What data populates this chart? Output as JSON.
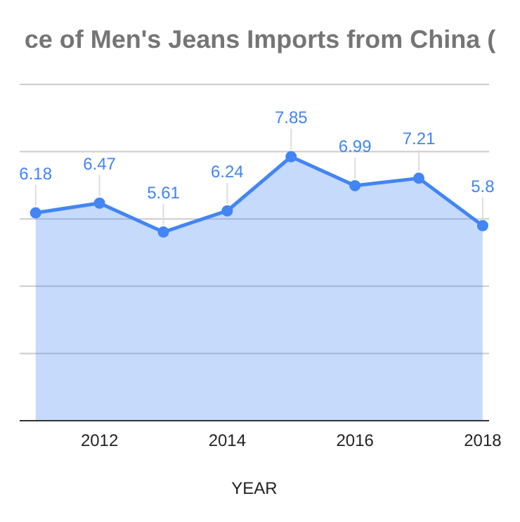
{
  "chart_data": {
    "type": "area",
    "title": "ce of Men's Jeans Imports from China (",
    "xlabel": "YEAR",
    "x": [
      2011,
      2012,
      2013,
      2014,
      2015,
      2016,
      2017,
      2018
    ],
    "series": [
      {
        "color": "#4285f4",
        "values": [
          6.18,
          6.47,
          5.61,
          6.24,
          7.85,
          6.99,
          7.21,
          5.8
        ],
        "value_labels": [
          "6.18",
          "6.47",
          "5.61",
          "6.24",
          "7.85",
          "6.99",
          "7.21",
          "5.8"
        ]
      }
    ],
    "xlim": [
      2010.75,
      2018.1
    ],
    "xticks": [
      2012,
      2014,
      2016,
      2018
    ],
    "ylim": [
      0,
      10
    ],
    "yticks": [
      {
        "value": 0,
        "label": null
      },
      {
        "value": 2,
        "label": null
      },
      {
        "value": 4,
        "label": null
      },
      {
        "value": 6,
        "label": null
      },
      {
        "value": 8,
        "label": null
      },
      {
        "value": 10,
        "label": null
      }
    ],
    "grid": "y",
    "marker": "circle",
    "line_style": "solid",
    "tick_labels": "x"
  }
}
